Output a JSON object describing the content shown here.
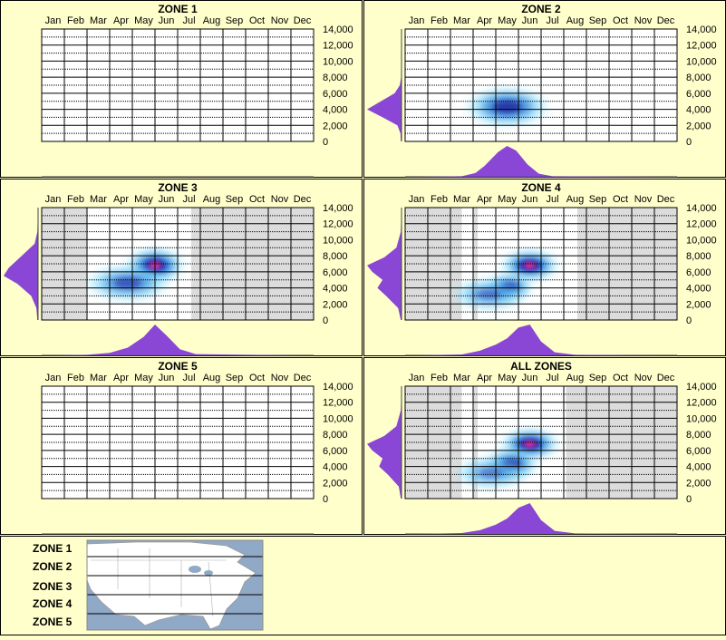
{
  "months": [
    "Jan",
    "Feb",
    "Mar",
    "Apr",
    "May",
    "Jun",
    "Jul",
    "Aug",
    "Sep",
    "Oct",
    "Nov",
    "Dec"
  ],
  "elevation_ticks": [
    "14,000",
    "12,000",
    "10,000",
    "8,000",
    "6,000",
    "4,000",
    "2,000",
    "0"
  ],
  "colors": {
    "background": "#ffffcc",
    "border": "#000000",
    "shade": "#dcdcdc",
    "density_fill": "#8a46d4",
    "heat_low": "#7fdfff",
    "heat_mid": "#1a6fd0",
    "heat_high": "#1a1a9a",
    "heat_peak": "#ff2fa0"
  },
  "chart_data": [
    {
      "type": "heatmap",
      "title": "ZONE 1",
      "x_categories": [
        "Jan",
        "Feb",
        "Mar",
        "Apr",
        "May",
        "Jun",
        "Jul",
        "Aug",
        "Sep",
        "Oct",
        "Nov",
        "Dec"
      ],
      "ylim": [
        0,
        14000
      ],
      "shaded_month_ranges": [],
      "hotspots": [],
      "elevation_density": [],
      "month_density": []
    },
    {
      "type": "heatmap",
      "title": "ZONE 2",
      "x_categories": [
        "Jan",
        "Feb",
        "Mar",
        "Apr",
        "May",
        "Jun",
        "Jul",
        "Aug",
        "Sep",
        "Oct",
        "Nov",
        "Dec"
      ],
      "ylim": [
        0,
        14000
      ],
      "shaded_month_ranges": [],
      "hotspots": [
        {
          "month": 5.0,
          "elevation": 4300,
          "intensity": 0.75,
          "spread_months": 0.7,
          "spread_elev": 900
        }
      ],
      "elevation_density": [
        [
          0,
          0.02
        ],
        [
          1000,
          0.03
        ],
        [
          2000,
          0.12
        ],
        [
          3000,
          0.55
        ],
        [
          4000,
          1.0
        ],
        [
          5000,
          0.6
        ],
        [
          6000,
          0.2
        ],
        [
          7000,
          0.05
        ],
        [
          8000,
          0.01
        ],
        [
          14000,
          0
        ]
      ],
      "month_density": [
        [
          1,
          0
        ],
        [
          3,
          0.02
        ],
        [
          3.6,
          0.12
        ],
        [
          4.0,
          0.35
        ],
        [
          4.6,
          0.8
        ],
        [
          5.0,
          1.0
        ],
        [
          5.4,
          0.85
        ],
        [
          5.9,
          0.4
        ],
        [
          6.4,
          0.1
        ],
        [
          7,
          0.02
        ],
        [
          12,
          0
        ]
      ]
    },
    {
      "type": "heatmap",
      "title": "ZONE 3",
      "x_categories": [
        "Jan",
        "Feb",
        "Mar",
        "Apr",
        "May",
        "Jun",
        "Jul",
        "Aug",
        "Sep",
        "Oct",
        "Nov",
        "Dec"
      ],
      "ylim": [
        0,
        14000
      ],
      "shaded_month_ranges": [
        [
          0.5,
          2.5
        ],
        [
          7.1,
          12.5
        ]
      ],
      "hotspots": [
        {
          "month": 5.5,
          "elevation": 6800,
          "intensity": 1.0,
          "spread_months": 0.5,
          "spread_elev": 800
        },
        {
          "month": 4.3,
          "elevation": 4600,
          "intensity": 0.55,
          "spread_months": 0.7,
          "spread_elev": 800
        }
      ],
      "elevation_density": [
        [
          0,
          0.02
        ],
        [
          1500,
          0.05
        ],
        [
          3000,
          0.2
        ],
        [
          4500,
          0.6
        ],
        [
          5500,
          1.0
        ],
        [
          6500,
          0.85
        ],
        [
          7500,
          0.6
        ],
        [
          8500,
          0.35
        ],
        [
          9500,
          0.1
        ],
        [
          11000,
          0.02
        ],
        [
          14000,
          0
        ]
      ],
      "month_density": [
        [
          1,
          0
        ],
        [
          2.5,
          0.02
        ],
        [
          3.5,
          0.08
        ],
        [
          4.3,
          0.25
        ],
        [
          5.0,
          0.6
        ],
        [
          5.5,
          1.0
        ],
        [
          6.0,
          0.65
        ],
        [
          6.6,
          0.2
        ],
        [
          7.3,
          0.04
        ],
        [
          12,
          0
        ]
      ]
    },
    {
      "type": "heatmap",
      "title": "ZONE 4",
      "x_categories": [
        "Jan",
        "Feb",
        "Mar",
        "Apr",
        "May",
        "Jun",
        "Jul",
        "Aug",
        "Sep",
        "Oct",
        "Nov",
        "Dec"
      ],
      "ylim": [
        0,
        14000
      ],
      "shaded_month_ranges": [
        [
          0.5,
          3.0
        ],
        [
          3.5,
          3.7
        ],
        [
          8.1,
          12.5
        ]
      ],
      "hotspots": [
        {
          "month": 6.0,
          "elevation": 6800,
          "intensity": 1.0,
          "spread_months": 0.5,
          "spread_elev": 700
        },
        {
          "month": 5.1,
          "elevation": 4100,
          "intensity": 0.85,
          "spread_months": 0.4,
          "spread_elev": 600
        },
        {
          "month": 4.2,
          "elevation": 3200,
          "intensity": 0.4,
          "spread_months": 0.6,
          "spread_elev": 700
        }
      ],
      "elevation_density": [
        [
          0,
          0.02
        ],
        [
          1500,
          0.1
        ],
        [
          3000,
          0.45
        ],
        [
          4000,
          0.7
        ],
        [
          5000,
          0.55
        ],
        [
          6000,
          0.85
        ],
        [
          6800,
          1.0
        ],
        [
          7800,
          0.5
        ],
        [
          9000,
          0.15
        ],
        [
          11000,
          0.02
        ],
        [
          14000,
          0
        ]
      ],
      "month_density": [
        [
          1,
          0
        ],
        [
          3,
          0.03
        ],
        [
          3.8,
          0.15
        ],
        [
          4.5,
          0.35
        ],
        [
          5.0,
          0.55
        ],
        [
          5.5,
          0.9
        ],
        [
          6.0,
          1.0
        ],
        [
          6.5,
          0.45
        ],
        [
          7.1,
          0.1
        ],
        [
          8,
          0.02
        ],
        [
          12,
          0
        ]
      ]
    },
    {
      "type": "heatmap",
      "title": "ZONE 5",
      "x_categories": [
        "Jan",
        "Feb",
        "Mar",
        "Apr",
        "May",
        "Jun",
        "Jul",
        "Aug",
        "Sep",
        "Oct",
        "Nov",
        "Dec"
      ],
      "ylim": [
        0,
        14000
      ],
      "shaded_month_ranges": [],
      "hotspots": [],
      "elevation_density": [],
      "month_density": []
    },
    {
      "type": "heatmap",
      "title": "ALL ZONES",
      "x_categories": [
        "Jan",
        "Feb",
        "Mar",
        "Apr",
        "May",
        "Jun",
        "Jul",
        "Aug",
        "Sep",
        "Oct",
        "Nov",
        "Dec"
      ],
      "ylim": [
        0,
        14000
      ],
      "shaded_month_ranges": [
        [
          0.5,
          3.0
        ],
        [
          3.5,
          3.7
        ],
        [
          7.6,
          12.5
        ]
      ],
      "hotspots": [
        {
          "month": 6.0,
          "elevation": 6800,
          "intensity": 1.0,
          "spread_months": 0.5,
          "spread_elev": 700
        },
        {
          "month": 5.2,
          "elevation": 4300,
          "intensity": 0.8,
          "spread_months": 0.45,
          "spread_elev": 700
        },
        {
          "month": 4.3,
          "elevation": 3200,
          "intensity": 0.35,
          "spread_months": 0.6,
          "spread_elev": 700
        }
      ],
      "elevation_density": [
        [
          0,
          0.02
        ],
        [
          1500,
          0.08
        ],
        [
          3000,
          0.4
        ],
        [
          4000,
          0.65
        ],
        [
          5000,
          0.55
        ],
        [
          6000,
          0.85
        ],
        [
          6800,
          1.0
        ],
        [
          7800,
          0.5
        ],
        [
          9000,
          0.15
        ],
        [
          11000,
          0.02
        ],
        [
          14000,
          0
        ]
      ],
      "month_density": [
        [
          1,
          0
        ],
        [
          3,
          0.03
        ],
        [
          3.8,
          0.12
        ],
        [
          4.5,
          0.3
        ],
        [
          5.0,
          0.5
        ],
        [
          5.5,
          0.85
        ],
        [
          6.0,
          1.0
        ],
        [
          6.5,
          0.45
        ],
        [
          7.1,
          0.1
        ],
        [
          8,
          0.02
        ],
        [
          12,
          0
        ]
      ]
    }
  ],
  "legend": {
    "zones": [
      "ZONE 1",
      "ZONE 2",
      "ZONE 3",
      "ZONE 4",
      "ZONE 5"
    ]
  }
}
